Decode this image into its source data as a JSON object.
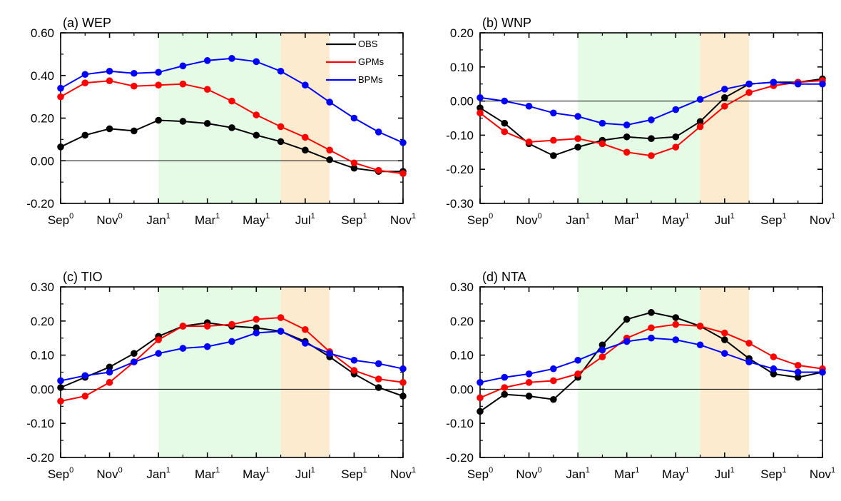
{
  "x_ticks": [
    {
      "month": "Sep",
      "year": "0"
    },
    {
      "month": "Nov",
      "year": "0"
    },
    {
      "month": "Jan",
      "year": "1"
    },
    {
      "month": "Mar",
      "year": "1"
    },
    {
      "month": "May",
      "year": "1"
    },
    {
      "month": "Jul",
      "year": "1"
    },
    {
      "month": "Sep",
      "year": "1"
    },
    {
      "month": "Nov",
      "year": "1"
    }
  ],
  "legend": [
    {
      "name": "OBS",
      "color": "#000000"
    },
    {
      "name": "GPMs",
      "color": "#ff0000"
    },
    {
      "name": "BPMs",
      "color": "#0000ff"
    }
  ],
  "shading": [
    {
      "from_month_index": 4,
      "to_month_index": 9,
      "color": "#e6fbe6"
    },
    {
      "from_month_index": 9,
      "to_month_index": 11,
      "color": "#fdebd0"
    }
  ],
  "chart_data": [
    {
      "type": "line",
      "title": "(a) WEP",
      "x": [
        "Sep0",
        "Oct0",
        "Nov0",
        "Dec0",
        "Jan1",
        "Feb1",
        "Mar1",
        "Apr1",
        "May1",
        "Jun1",
        "Jul1",
        "Aug1",
        "Sep1",
        "Oct1",
        "Nov1"
      ],
      "ylim": [
        -0.2,
        0.6
      ],
      "yticks": [
        "0.60",
        "0.40",
        "0.20",
        "0.00",
        "-0.20"
      ],
      "ytick_values": [
        0.6,
        0.4,
        0.2,
        0.0,
        -0.2
      ],
      "zero_line": true,
      "legend": "top-right",
      "series": [
        {
          "name": "OBS",
          "color": "#000000",
          "values": [
            0.065,
            0.12,
            0.15,
            0.14,
            0.19,
            0.185,
            0.175,
            0.155,
            0.12,
            0.09,
            0.05,
            0.005,
            -0.035,
            -0.05,
            -0.05
          ]
        },
        {
          "name": "GPMs",
          "color": "#ff0000",
          "values": [
            0.3,
            0.365,
            0.375,
            0.35,
            0.355,
            0.36,
            0.335,
            0.28,
            0.215,
            0.16,
            0.11,
            0.05,
            -0.01,
            -0.045,
            -0.06
          ]
        },
        {
          "name": "BPMs",
          "color": "#0000ff",
          "values": [
            0.34,
            0.405,
            0.42,
            0.41,
            0.415,
            0.445,
            0.47,
            0.48,
            0.465,
            0.42,
            0.355,
            0.275,
            0.2,
            0.135,
            0.085
          ]
        }
      ]
    },
    {
      "type": "line",
      "title": "(b) WNP",
      "x": [
        "Sep0",
        "Oct0",
        "Nov0",
        "Dec0",
        "Jan1",
        "Feb1",
        "Mar1",
        "Apr1",
        "May1",
        "Jun1",
        "Jul1",
        "Aug1",
        "Sep1",
        "Oct1",
        "Nov1"
      ],
      "ylim": [
        -0.3,
        0.2
      ],
      "yticks": [
        "0.20",
        "0.10",
        "0.00",
        "-0.10",
        "-0.20",
        "-0.30"
      ],
      "ytick_values": [
        0.2,
        0.1,
        0.0,
        -0.1,
        -0.2,
        -0.3
      ],
      "zero_line": true,
      "series": [
        {
          "name": "OBS",
          "color": "#000000",
          "values": [
            -0.02,
            -0.065,
            -0.125,
            -0.16,
            -0.135,
            -0.115,
            -0.105,
            -0.11,
            -0.105,
            -0.06,
            0.01,
            0.05,
            0.055,
            0.055,
            0.065
          ]
        },
        {
          "name": "GPMs",
          "color": "#ff0000",
          "values": [
            -0.035,
            -0.09,
            -0.12,
            -0.115,
            -0.11,
            -0.125,
            -0.15,
            -0.16,
            -0.135,
            -0.075,
            -0.015,
            0.025,
            0.045,
            0.055,
            0.06
          ]
        },
        {
          "name": "BPMs",
          "color": "#0000ff",
          "values": [
            0.01,
            0.0,
            -0.015,
            -0.035,
            -0.045,
            -0.065,
            -0.07,
            -0.055,
            -0.025,
            0.005,
            0.035,
            0.05,
            0.055,
            0.05,
            0.05
          ]
        }
      ]
    },
    {
      "type": "line",
      "title": "(c) TIO",
      "x": [
        "Sep0",
        "Oct0",
        "Nov0",
        "Dec0",
        "Jan1",
        "Feb1",
        "Mar1",
        "Apr1",
        "May1",
        "Jun1",
        "Jul1",
        "Aug1",
        "Sep1",
        "Oct1",
        "Nov1"
      ],
      "ylim": [
        -0.2,
        0.3
      ],
      "yticks": [
        "0.30",
        "0.20",
        "0.10",
        "0.00",
        "-0.10",
        "-0.20"
      ],
      "ytick_values": [
        0.3,
        0.2,
        0.1,
        0.0,
        -0.1,
        -0.2
      ],
      "zero_line": true,
      "series": [
        {
          "name": "OBS",
          "color": "#000000",
          "values": [
            0.005,
            0.035,
            0.065,
            0.105,
            0.155,
            0.185,
            0.195,
            0.185,
            0.18,
            0.17,
            0.14,
            0.095,
            0.045,
            0.005,
            -0.02
          ]
        },
        {
          "name": "GPMs",
          "color": "#ff0000",
          "values": [
            -0.035,
            -0.02,
            0.02,
            0.08,
            0.145,
            0.185,
            0.185,
            0.19,
            0.205,
            0.21,
            0.175,
            0.11,
            0.055,
            0.03,
            0.02
          ]
        },
        {
          "name": "BPMs",
          "color": "#0000ff",
          "values": [
            0.025,
            0.04,
            0.05,
            0.08,
            0.105,
            0.12,
            0.125,
            0.14,
            0.165,
            0.17,
            0.135,
            0.105,
            0.085,
            0.075,
            0.06
          ]
        }
      ]
    },
    {
      "type": "line",
      "title": "(d) NTA",
      "x": [
        "Sep0",
        "Oct0",
        "Nov0",
        "Dec0",
        "Jan1",
        "Feb1",
        "Mar1",
        "Apr1",
        "May1",
        "Jun1",
        "Jul1",
        "Aug1",
        "Sep1",
        "Oct1",
        "Nov1"
      ],
      "ylim": [
        -0.2,
        0.3
      ],
      "yticks": [
        "0.30",
        "0.20",
        "0.10",
        "0.00",
        "-0.10",
        "-0.20"
      ],
      "ytick_values": [
        0.3,
        0.2,
        0.1,
        0.0,
        -0.1,
        -0.2
      ],
      "zero_line": true,
      "series": [
        {
          "name": "OBS",
          "color": "#000000",
          "values": [
            -0.065,
            -0.015,
            -0.02,
            -0.03,
            0.035,
            0.13,
            0.205,
            0.225,
            0.21,
            0.185,
            0.145,
            0.09,
            0.045,
            0.035,
            0.05
          ]
        },
        {
          "name": "GPMs",
          "color": "#ff0000",
          "values": [
            -0.025,
            0.005,
            0.02,
            0.025,
            0.045,
            0.095,
            0.15,
            0.18,
            0.19,
            0.185,
            0.165,
            0.135,
            0.095,
            0.07,
            0.06
          ]
        },
        {
          "name": "BPMs",
          "color": "#0000ff",
          "values": [
            0.02,
            0.035,
            0.045,
            0.06,
            0.085,
            0.115,
            0.14,
            0.15,
            0.145,
            0.13,
            0.105,
            0.08,
            0.06,
            0.05,
            0.05
          ]
        }
      ]
    }
  ]
}
